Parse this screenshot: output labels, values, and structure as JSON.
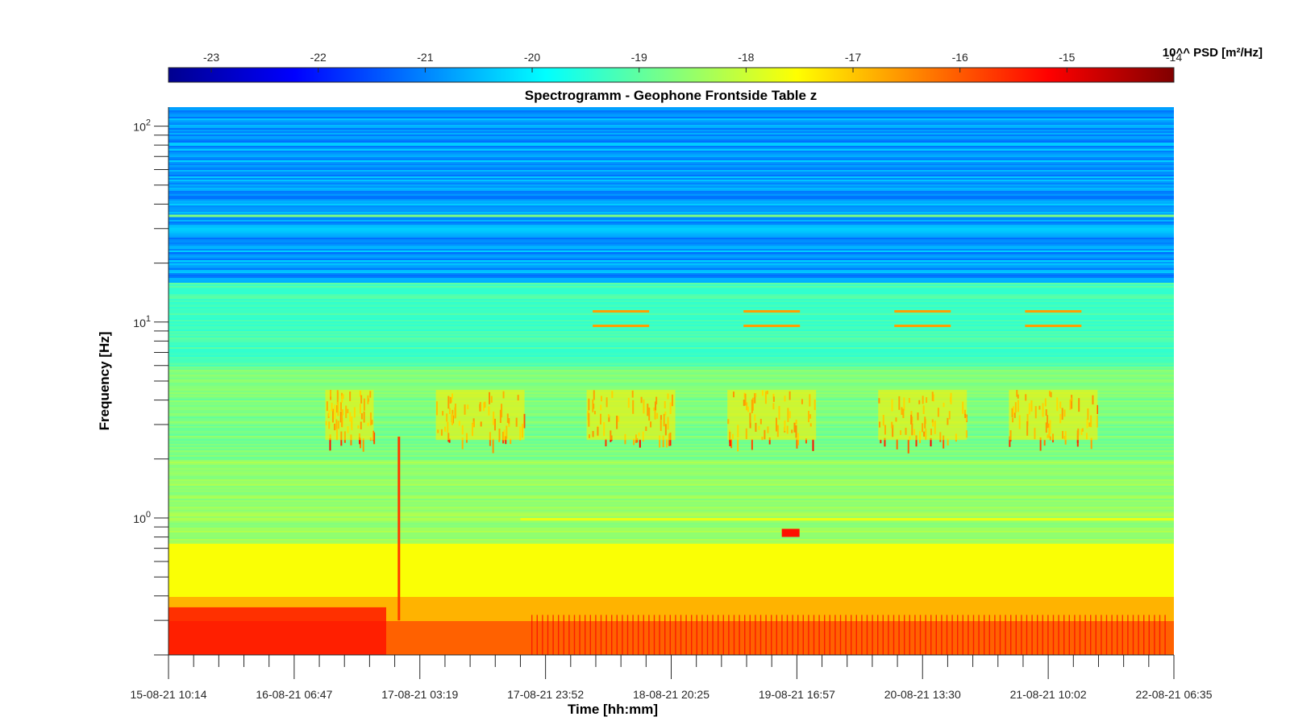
{
  "chart_data": {
    "type": "heatmap",
    "title": "Spectrogramm - Geophone Frontside Table z",
    "xlabel": "Time [hh:mm]",
    "ylabel": "Frequency [Hz]",
    "x_tick_labels": [
      "15-08-21 10:14",
      "16-08-21 06:47",
      "17-08-21 03:19",
      "17-08-21 23:52",
      "18-08-21 20:25",
      "19-08-21 16:57",
      "20-08-21 13:30",
      "21-08-21 10:02",
      "22-08-21 06:35"
    ],
    "y_scale": "log",
    "ylim": [
      0.2,
      125
    ],
    "y_decades": [
      {
        "base": "10",
        "exp": "0",
        "value": 1
      },
      {
        "base": "10",
        "exp": "1",
        "value": 10
      },
      {
        "base": "10",
        "exp": "2",
        "value": 100
      }
    ],
    "colormap": "jet",
    "colorbar": {
      "label": "10^^ PSD [m²/Hz]",
      "placement": "top",
      "range": [
        -23.4,
        -14
      ],
      "ticks": [
        "-23",
        "-22",
        "-21",
        "-20",
        "-19",
        "-18",
        "-17",
        "-16",
        "-15",
        "-14"
      ]
    },
    "grid": false,
    "daily_activity_bands_hz": [
      3,
      4
    ],
    "spectral_lines_hz": [
      1.0,
      11.5,
      35
    ]
  },
  "colors": {
    "jet_low": "#00008f",
    "jet_mid": "#00ffff",
    "jet_high": "#800000",
    "axis": "#262626"
  }
}
